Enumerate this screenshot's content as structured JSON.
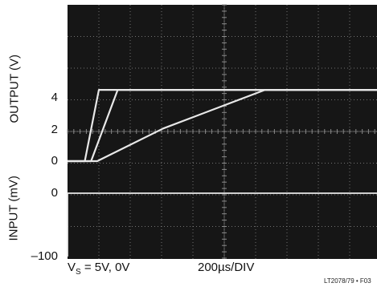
{
  "chart_data": {
    "type": "line",
    "title": "",
    "xlabel": "200µs/DIV",
    "caption": {
      "prefix": "V",
      "subscript": "S",
      "suffix": " = 5V, 0V"
    },
    "figure_id": "LT2078/79 • F03",
    "x_divisions": 10,
    "y_divisions": 8,
    "output_axis": {
      "label": "OUTPUT (V)",
      "ticks": [
        {
          "value": 4,
          "text": "4"
        },
        {
          "value": 2,
          "text": "2"
        },
        {
          "value": 0,
          "text": "0"
        }
      ]
    },
    "input_axis": {
      "label": "INPUT (mV)",
      "ticks": [
        {
          "value": 0,
          "text": "0"
        },
        {
          "value": -100,
          "text": "–100"
        }
      ]
    },
    "x_unit": "µs",
    "output_series": [
      {
        "x": [
          0,
          110,
          200,
          400,
          2000
        ],
        "y": [
          0,
          0,
          4.5,
          4.5,
          4.5
        ]
      },
      {
        "x": [
          0,
          150,
          320,
          800,
          2000
        ],
        "y": [
          0,
          0,
          4.5,
          4.5,
          4.5
        ]
      },
      {
        "x": [
          0,
          190,
          610,
          1260,
          2000
        ],
        "y": [
          0,
          0,
          2.06,
          4.5,
          4.5
        ]
      }
    ],
    "input_series": [
      {
        "x": [
          0,
          0,
          2000
        ],
        "y": [
          -100,
          0,
          0
        ]
      }
    ]
  },
  "colors": {
    "screen": "#161616",
    "grid": "#8a8a8a",
    "trace": "#e8e8e8",
    "text": "#111111"
  }
}
